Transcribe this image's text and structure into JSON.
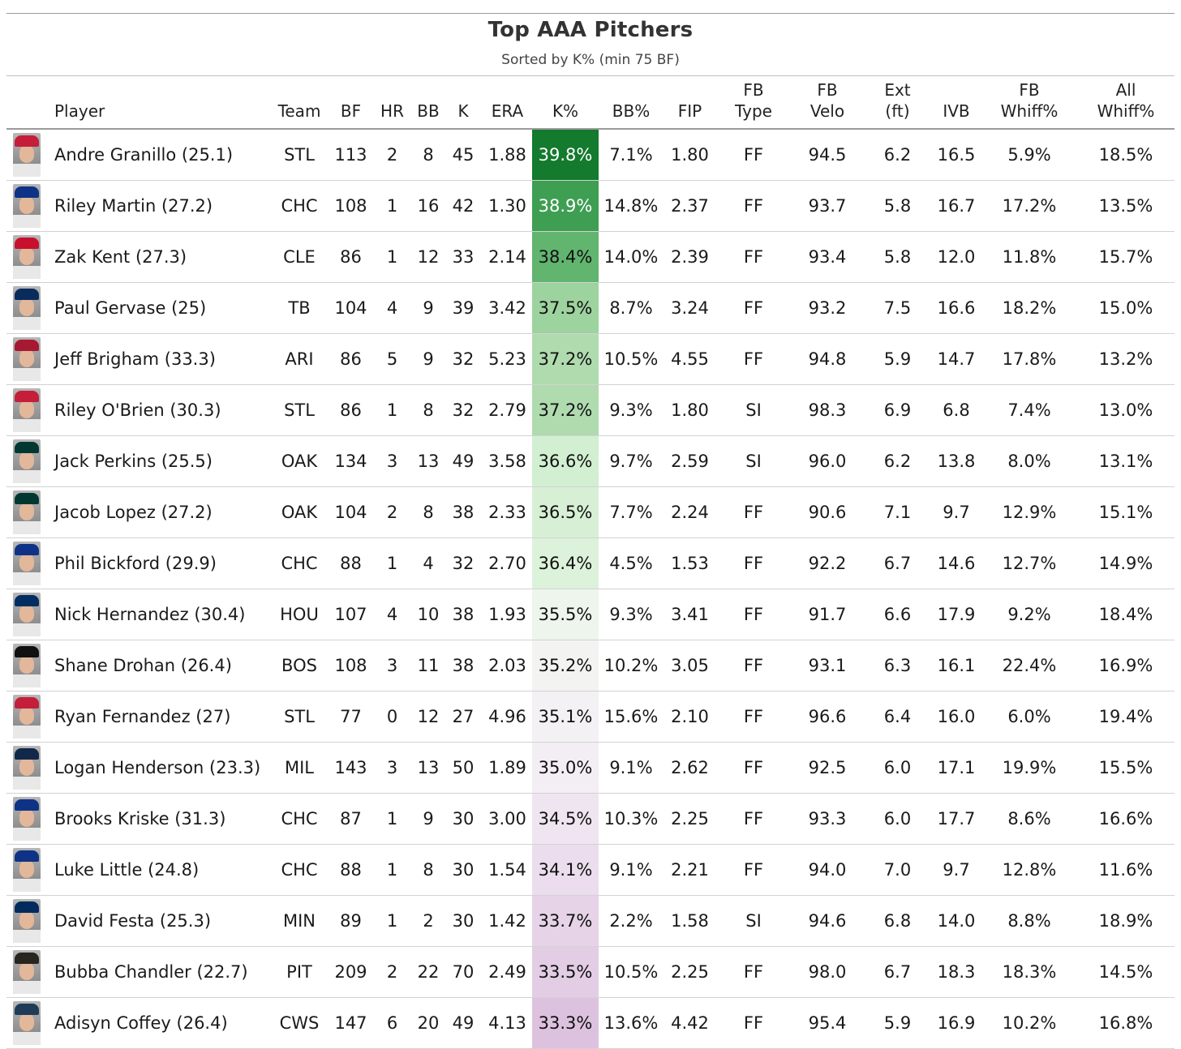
{
  "title": "Top AAA Pitchers",
  "subtitle": "Sorted by K% (min 75 BF)",
  "columns": {
    "player": "Player",
    "team": "Team",
    "bf": "BF",
    "hr": "HR",
    "bb": "BB",
    "k": "K",
    "era": "ERA",
    "kpct": "K%",
    "bbpct": "BB%",
    "fip": "FIP",
    "fb_type_1": "FB",
    "fb_type_2": "Type",
    "fb_velo_1": "FB",
    "fb_velo_2": "Velo",
    "ext_1": "Ext",
    "ext_2": "(ft)",
    "ivb": "IVB",
    "fb_whiff_1": "FB",
    "fb_whiff_2": "Whiff%",
    "all_whiff_1": "All",
    "all_whiff_2": "Whiff%"
  },
  "kpct_scale": {
    "high_color": "#1a7f37",
    "mid_color": "#f3f3f3",
    "low_color": "#d9b8dc"
  },
  "rows": [
    {
      "player": "Andre Granillo (25.1)",
      "team": "STL",
      "bf": "113",
      "hr": "2",
      "bb": "8",
      "k": "45",
      "era": "1.88",
      "kpct": "39.8%",
      "bbpct": "7.1%",
      "fip": "1.80",
      "fb_type": "FF",
      "fb_velo": "94.5",
      "ext": "6.2",
      "ivb": "16.5",
      "fb_whiff": "5.9%",
      "all_whiff": "18.5%",
      "cap_color": "#c41e3a",
      "kpct_bg": "#137a2e",
      "kpct_fg": "#ffffff"
    },
    {
      "player": "Riley Martin (27.2)",
      "team": "CHC",
      "bf": "108",
      "hr": "1",
      "bb": "16",
      "k": "42",
      "era": "1.30",
      "kpct": "38.9%",
      "bbpct": "14.8%",
      "fip": "2.37",
      "fb_type": "FF",
      "fb_velo": "93.7",
      "ext": "5.8",
      "ivb": "16.7",
      "fb_whiff": "17.2%",
      "all_whiff": "13.5%",
      "cap_color": "#0e3386",
      "kpct_bg": "#3e9e52",
      "kpct_fg": "#ffffff"
    },
    {
      "player": "Zak Kent (27.3)",
      "team": "CLE",
      "bf": "86",
      "hr": "1",
      "bb": "12",
      "k": "33",
      "era": "2.14",
      "kpct": "38.4%",
      "bbpct": "14.0%",
      "fip": "2.39",
      "fb_type": "FF",
      "fb_velo": "93.4",
      "ext": "5.8",
      "ivb": "12.0",
      "fb_whiff": "11.8%",
      "all_whiff": "15.7%",
      "cap_color": "#c8102e",
      "kpct_bg": "#61b56f",
      "kpct_fg": "#111111"
    },
    {
      "player": "Paul Gervase (25)",
      "team": "TB",
      "bf": "104",
      "hr": "4",
      "bb": "9",
      "k": "39",
      "era": "3.42",
      "kpct": "37.5%",
      "bbpct": "8.7%",
      "fip": "3.24",
      "fb_type": "FF",
      "fb_velo": "93.2",
      "ext": "7.5",
      "ivb": "16.6",
      "fb_whiff": "18.2%",
      "all_whiff": "15.0%",
      "cap_color": "#092c5c",
      "kpct_bg": "#9dd39f",
      "kpct_fg": "#111111"
    },
    {
      "player": "Jeff Brigham (33.3)",
      "team": "ARI",
      "bf": "86",
      "hr": "5",
      "bb": "9",
      "k": "32",
      "era": "5.23",
      "kpct": "37.2%",
      "bbpct": "10.5%",
      "fip": "4.55",
      "fb_type": "FF",
      "fb_velo": "94.8",
      "ext": "5.9",
      "ivb": "14.7",
      "fb_whiff": "17.8%",
      "all_whiff": "13.2%",
      "cap_color": "#a71930",
      "kpct_bg": "#afdbaf",
      "kpct_fg": "#111111"
    },
    {
      "player": "Riley O'Brien (30.3)",
      "team": "STL",
      "bf": "86",
      "hr": "1",
      "bb": "8",
      "k": "32",
      "era": "2.79",
      "kpct": "37.2%",
      "bbpct": "9.3%",
      "fip": "1.80",
      "fb_type": "SI",
      "fb_velo": "98.3",
      "ext": "6.9",
      "ivb": "6.8",
      "fb_whiff": "7.4%",
      "all_whiff": "13.0%",
      "cap_color": "#c41e3a",
      "kpct_bg": "#afdbaf",
      "kpct_fg": "#111111"
    },
    {
      "player": "Jack Perkins (25.5)",
      "team": "OAK",
      "bf": "134",
      "hr": "3",
      "bb": "13",
      "k": "49",
      "era": "3.58",
      "kpct": "36.6%",
      "bbpct": "9.7%",
      "fip": "2.59",
      "fb_type": "SI",
      "fb_velo": "96.0",
      "ext": "6.2",
      "ivb": "13.8",
      "fb_whiff": "8.0%",
      "all_whiff": "13.1%",
      "cap_color": "#003831",
      "kpct_bg": "#d2efd1",
      "kpct_fg": "#111111"
    },
    {
      "player": "Jacob Lopez (27.2)",
      "team": "OAK",
      "bf": "104",
      "hr": "2",
      "bb": "8",
      "k": "38",
      "era": "2.33",
      "kpct": "36.5%",
      "bbpct": "7.7%",
      "fip": "2.24",
      "fb_type": "FF",
      "fb_velo": "90.6",
      "ext": "7.1",
      "ivb": "9.7",
      "fb_whiff": "12.9%",
      "all_whiff": "15.1%",
      "cap_color": "#003831",
      "kpct_bg": "#d7f0d5",
      "kpct_fg": "#111111"
    },
    {
      "player": "Phil Bickford (29.9)",
      "team": "CHC",
      "bf": "88",
      "hr": "1",
      "bb": "4",
      "k": "32",
      "era": "2.70",
      "kpct": "36.4%",
      "bbpct": "4.5%",
      "fip": "1.53",
      "fb_type": "FF",
      "fb_velo": "92.2",
      "ext": "6.7",
      "ivb": "14.6",
      "fb_whiff": "12.7%",
      "all_whiff": "14.9%",
      "cap_color": "#0e3386",
      "kpct_bg": "#dcf2da",
      "kpct_fg": "#111111"
    },
    {
      "player": "Nick Hernandez (30.4)",
      "team": "HOU",
      "bf": "107",
      "hr": "4",
      "bb": "10",
      "k": "38",
      "era": "1.93",
      "kpct": "35.5%",
      "bbpct": "9.3%",
      "fip": "3.41",
      "fb_type": "FF",
      "fb_velo": "91.7",
      "ext": "6.6",
      "ivb": "17.9",
      "fb_whiff": "9.2%",
      "all_whiff": "18.4%",
      "cap_color": "#002d62",
      "kpct_bg": "#eef5ec",
      "kpct_fg": "#111111"
    },
    {
      "player": "Shane Drohan (26.4)",
      "team": "BOS",
      "bf": "108",
      "hr": "3",
      "bb": "11",
      "k": "38",
      "era": "2.03",
      "kpct": "35.2%",
      "bbpct": "10.2%",
      "fip": "3.05",
      "fb_type": "FF",
      "fb_velo": "93.1",
      "ext": "6.3",
      "ivb": "16.1",
      "fb_whiff": "22.4%",
      "all_whiff": "16.9%",
      "cap_color": "#111111",
      "kpct_bg": "#f3f3f2",
      "kpct_fg": "#111111"
    },
    {
      "player": "Ryan Fernandez (27)",
      "team": "STL",
      "bf": "77",
      "hr": "0",
      "bb": "12",
      "k": "27",
      "era": "4.96",
      "kpct": "35.1%",
      "bbpct": "15.6%",
      "fip": "2.10",
      "fb_type": "FF",
      "fb_velo": "96.6",
      "ext": "6.4",
      "ivb": "16.0",
      "fb_whiff": "6.0%",
      "all_whiff": "19.4%",
      "cap_color": "#c41e3a",
      "kpct_bg": "#f3f1f4",
      "kpct_fg": "#111111"
    },
    {
      "player": "Logan Henderson (23.3)",
      "team": "MIL",
      "bf": "143",
      "hr": "3",
      "bb": "13",
      "k": "50",
      "era": "1.89",
      "kpct": "35.0%",
      "bbpct": "9.1%",
      "fip": "2.62",
      "fb_type": "FF",
      "fb_velo": "92.5",
      "ext": "6.0",
      "ivb": "17.1",
      "fb_whiff": "19.9%",
      "all_whiff": "15.5%",
      "cap_color": "#12284b",
      "kpct_bg": "#f2eef3",
      "kpct_fg": "#111111"
    },
    {
      "player": "Brooks Kriske (31.3)",
      "team": "CHC",
      "bf": "87",
      "hr": "1",
      "bb": "9",
      "k": "30",
      "era": "3.00",
      "kpct": "34.5%",
      "bbpct": "10.3%",
      "fip": "2.25",
      "fb_type": "FF",
      "fb_velo": "93.3",
      "ext": "6.0",
      "ivb": "17.7",
      "fb_whiff": "8.6%",
      "all_whiff": "16.6%",
      "cap_color": "#0e3386",
      "kpct_bg": "#efe5f0",
      "kpct_fg": "#111111"
    },
    {
      "player": "Luke Little (24.8)",
      "team": "CHC",
      "bf": "88",
      "hr": "1",
      "bb": "8",
      "k": "30",
      "era": "1.54",
      "kpct": "34.1%",
      "bbpct": "9.1%",
      "fip": "2.21",
      "fb_type": "FF",
      "fb_velo": "94.0",
      "ext": "7.0",
      "ivb": "9.7",
      "fb_whiff": "12.8%",
      "all_whiff": "11.6%",
      "cap_color": "#0e3386",
      "kpct_bg": "#ebdded",
      "kpct_fg": "#111111"
    },
    {
      "player": "David Festa (25.3)",
      "team": "MIN",
      "bf": "89",
      "hr": "1",
      "bb": "2",
      "k": "30",
      "era": "1.42",
      "kpct": "33.7%",
      "bbpct": "2.2%",
      "fip": "1.58",
      "fb_type": "SI",
      "fb_velo": "94.6",
      "ext": "6.8",
      "ivb": "14.0",
      "fb_whiff": "8.8%",
      "all_whiff": "18.9%",
      "cap_color": "#002b5c",
      "kpct_bg": "#e6d3e8",
      "kpct_fg": "#111111"
    },
    {
      "player": "Bubba Chandler (22.7)",
      "team": "PIT",
      "bf": "209",
      "hr": "2",
      "bb": "22",
      "k": "70",
      "era": "2.49",
      "kpct": "33.5%",
      "bbpct": "10.5%",
      "fip": "2.25",
      "fb_type": "FF",
      "fb_velo": "98.0",
      "ext": "6.7",
      "ivb": "18.3",
      "fb_whiff": "18.3%",
      "all_whiff": "14.5%",
      "cap_color": "#27251f",
      "kpct_bg": "#e2cde4",
      "kpct_fg": "#111111"
    },
    {
      "player": "Adisyn Coffey (26.4)",
      "team": "CWS",
      "bf": "147",
      "hr": "6",
      "bb": "20",
      "k": "49",
      "era": "4.13",
      "kpct": "33.3%",
      "bbpct": "13.6%",
      "fip": "4.42",
      "fb_type": "FF",
      "fb_velo": "95.4",
      "ext": "5.9",
      "ivb": "16.9",
      "fb_whiff": "10.2%",
      "all_whiff": "16.8%",
      "cap_color": "#1f3b57",
      "kpct_bg": "#ddc2df",
      "kpct_fg": "#111111"
    }
  ]
}
